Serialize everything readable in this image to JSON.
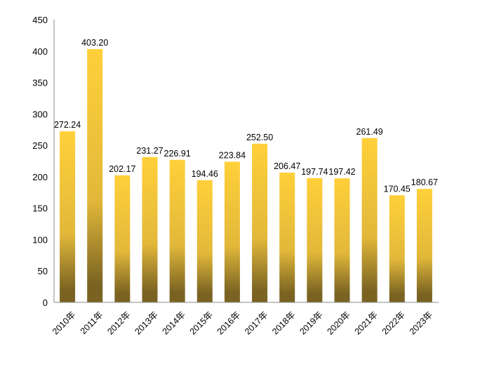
{
  "chart_data": {
    "type": "bar",
    "title": "",
    "xlabel": "",
    "ylabel": "",
    "categories": [
      "2010年",
      "2011年",
      "2012年",
      "2013年",
      "2014年",
      "2015年",
      "2016年",
      "2017年",
      "2018年",
      "2019年",
      "2020年",
      "2021年",
      "2022年",
      "2023年"
    ],
    "values": [
      272.24,
      403.2,
      202.17,
      231.27,
      226.91,
      194.46,
      223.84,
      252.5,
      206.47,
      197.74,
      197.42,
      261.49,
      170.45,
      180.67
    ],
    "value_labels": [
      "272.24",
      "403.20",
      "202.17",
      "231.27",
      "226.91",
      "194.46",
      "223.84",
      "252.50",
      "206.47",
      "197.74",
      "197.42",
      "261.49",
      "170.45",
      "180.67"
    ],
    "ylim": [
      0,
      450
    ],
    "yticks": [
      "0",
      "50",
      "100",
      "150",
      "200",
      "250",
      "300",
      "350",
      "400",
      "450"
    ],
    "grid": false,
    "legend": "none",
    "colors": {
      "bar_top": "#FFD03A",
      "bar_mid": "#E2B83A",
      "bar_bottom": "#7A6322",
      "axis": "#888888"
    }
  }
}
